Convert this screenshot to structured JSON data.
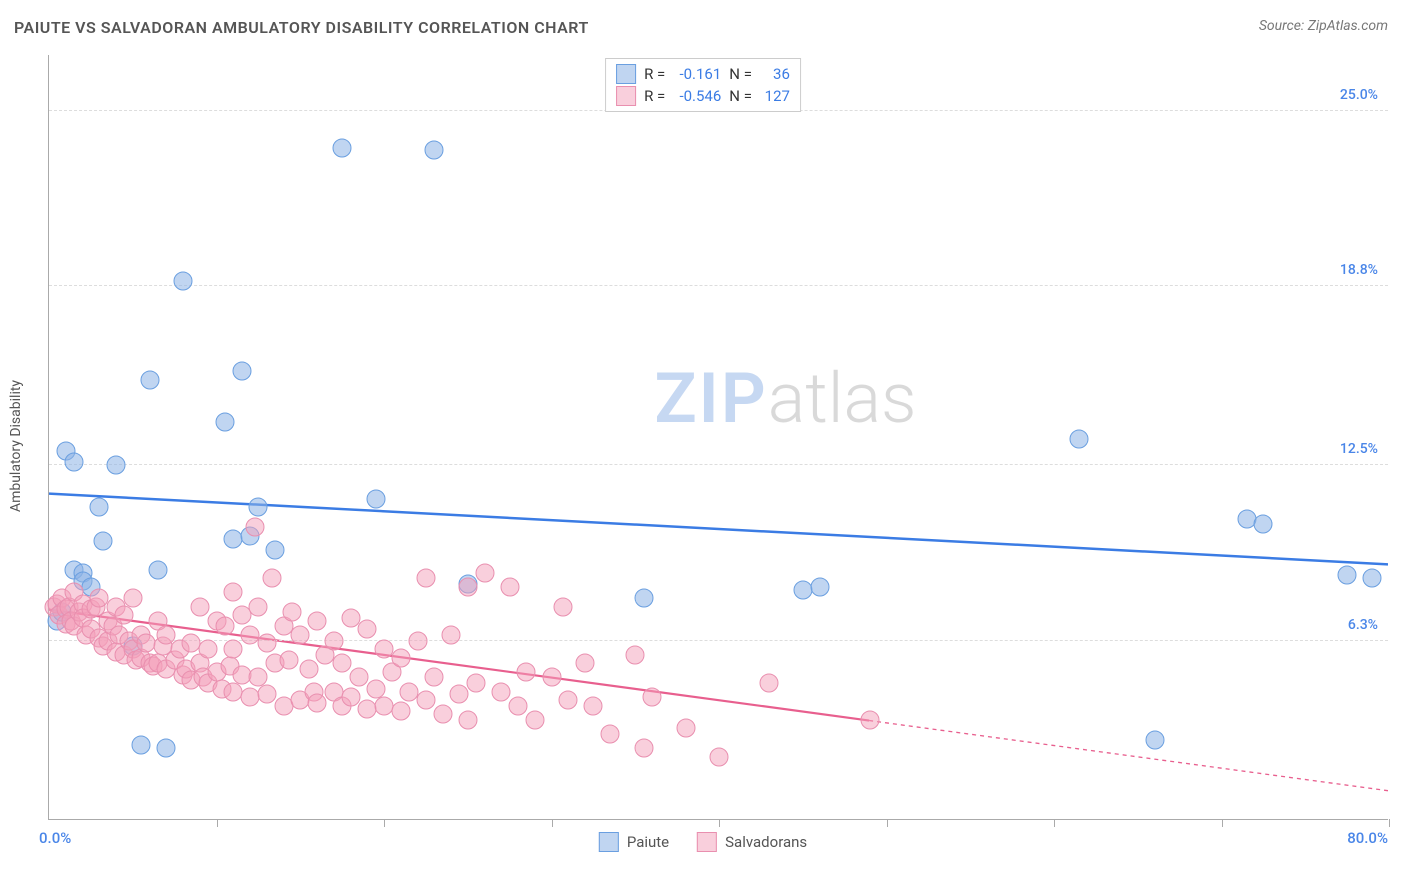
{
  "title": "PAIUTE VS SALVADORAN AMBULATORY DISABILITY CORRELATION CHART",
  "source": "Source: ZipAtlas.com",
  "ylabel": "Ambulatory Disability",
  "watermark": {
    "part1": "ZIP",
    "part2": "atlas"
  },
  "chart": {
    "type": "scatter",
    "xlim": [
      0,
      80
    ],
    "ylim": [
      0,
      27
    ],
    "xmin_label": "0.0%",
    "xmax_label": "80.0%",
    "background_color": "#ffffff",
    "grid_color": "#dddddd",
    "yticks": [
      {
        "v": 6.3,
        "label": "6.3%"
      },
      {
        "v": 12.5,
        "label": "12.5%"
      },
      {
        "v": 18.8,
        "label": "18.8%"
      },
      {
        "v": 25.0,
        "label": "25.0%"
      }
    ],
    "xticks": [
      10,
      20,
      30,
      40,
      50,
      60,
      70,
      80
    ],
    "marker_size": 19,
    "series": [
      {
        "name": "Paiute",
        "color_fill": "rgba(141,178,229,0.55)",
        "color_border": "#6a9fe0",
        "R": "-0.161",
        "N": "36",
        "trend": {
          "x1": 0,
          "y1": 11.5,
          "x2": 80,
          "y2": 9.0,
          "color": "#3b7ce4",
          "width": 2.5,
          "solid_until_x": 80
        },
        "points": [
          [
            0.5,
            7.0
          ],
          [
            0.8,
            7.3
          ],
          [
            1.0,
            13.0
          ],
          [
            1.5,
            12.6
          ],
          [
            1.5,
            8.8
          ],
          [
            2.0,
            8.7
          ],
          [
            2.0,
            8.4
          ],
          [
            2.5,
            8.2
          ],
          [
            3.0,
            11.0
          ],
          [
            3.2,
            9.8
          ],
          [
            4.0,
            12.5
          ],
          [
            5.0,
            6.1
          ],
          [
            5.5,
            2.6
          ],
          [
            6.0,
            15.5
          ],
          [
            6.5,
            8.8
          ],
          [
            7.0,
            2.5
          ],
          [
            8.0,
            19.0
          ],
          [
            10.5,
            14.0
          ],
          [
            11.0,
            9.9
          ],
          [
            11.5,
            15.8
          ],
          [
            12.0,
            10.0
          ],
          [
            12.5,
            11.0
          ],
          [
            13.5,
            9.5
          ],
          [
            17.5,
            23.7
          ],
          [
            19.5,
            11.3
          ],
          [
            23.0,
            23.6
          ],
          [
            25.0,
            8.3
          ],
          [
            35.5,
            7.8
          ],
          [
            45.0,
            8.1
          ],
          [
            46.0,
            8.2
          ],
          [
            61.5,
            13.4
          ],
          [
            66.0,
            2.8
          ],
          [
            71.5,
            10.6
          ],
          [
            72.5,
            10.4
          ],
          [
            77.5,
            8.6
          ],
          [
            79.0,
            8.5
          ]
        ]
      },
      {
        "name": "Salvadorans",
        "color_fill": "rgba(244,160,186,0.5)",
        "color_border": "#e98faf",
        "R": "-0.546",
        "N": "127",
        "trend": {
          "x1": 0,
          "y1": 7.4,
          "x2": 80,
          "y2": 1.0,
          "color": "#e85f8e",
          "width": 2.2,
          "solid_until_x": 49
        },
        "points": [
          [
            0.3,
            7.5
          ],
          [
            0.5,
            7.6
          ],
          [
            0.6,
            7.2
          ],
          [
            0.8,
            7.8
          ],
          [
            1.0,
            7.4
          ],
          [
            1.0,
            6.9
          ],
          [
            1.2,
            7.5
          ],
          [
            1.3,
            7.0
          ],
          [
            1.5,
            8.0
          ],
          [
            1.5,
            6.8
          ],
          [
            1.8,
            7.3
          ],
          [
            2.0,
            7.6
          ],
          [
            2.0,
            7.1
          ],
          [
            2.2,
            6.5
          ],
          [
            2.5,
            7.4
          ],
          [
            2.5,
            6.7
          ],
          [
            2.8,
            7.5
          ],
          [
            3.0,
            7.8
          ],
          [
            3.0,
            6.4
          ],
          [
            3.2,
            6.1
          ],
          [
            3.5,
            7.0
          ],
          [
            3.5,
            6.3
          ],
          [
            3.8,
            6.8
          ],
          [
            4.0,
            7.5
          ],
          [
            4.0,
            5.9
          ],
          [
            4.2,
            6.5
          ],
          [
            4.5,
            7.2
          ],
          [
            4.5,
            5.8
          ],
          [
            4.8,
            6.3
          ],
          [
            5.0,
            7.8
          ],
          [
            5.0,
            6.0
          ],
          [
            5.2,
            5.6
          ],
          [
            5.5,
            6.5
          ],
          [
            5.5,
            5.7
          ],
          [
            5.8,
            6.2
          ],
          [
            6.0,
            5.5
          ],
          [
            6.2,
            5.4
          ],
          [
            6.5,
            7.0
          ],
          [
            6.5,
            5.5
          ],
          [
            6.8,
            6.1
          ],
          [
            7.0,
            6.5
          ],
          [
            7.0,
            5.3
          ],
          [
            7.5,
            5.6
          ],
          [
            7.8,
            6.0
          ],
          [
            8.0,
            5.1
          ],
          [
            8.2,
            5.3
          ],
          [
            8.5,
            6.2
          ],
          [
            8.5,
            4.9
          ],
          [
            9.0,
            7.5
          ],
          [
            9.0,
            5.5
          ],
          [
            9.2,
            5.0
          ],
          [
            9.5,
            6.0
          ],
          [
            9.5,
            4.8
          ],
          [
            10.0,
            7.0
          ],
          [
            10.0,
            5.2
          ],
          [
            10.3,
            4.6
          ],
          [
            10.5,
            6.8
          ],
          [
            10.8,
            5.4
          ],
          [
            11.0,
            8.0
          ],
          [
            11.0,
            6.0
          ],
          [
            11.0,
            4.5
          ],
          [
            11.5,
            7.2
          ],
          [
            11.5,
            5.1
          ],
          [
            12.0,
            6.5
          ],
          [
            12.0,
            4.3
          ],
          [
            12.3,
            10.3
          ],
          [
            12.5,
            7.5
          ],
          [
            12.5,
            5.0
          ],
          [
            13.0,
            6.2
          ],
          [
            13.0,
            4.4
          ],
          [
            13.3,
            8.5
          ],
          [
            13.5,
            5.5
          ],
          [
            14.0,
            6.8
          ],
          [
            14.0,
            4.0
          ],
          [
            14.3,
            5.6
          ],
          [
            14.5,
            7.3
          ],
          [
            15.0,
            4.2
          ],
          [
            15.0,
            6.5
          ],
          [
            15.5,
            5.3
          ],
          [
            15.8,
            4.5
          ],
          [
            16.0,
            7.0
          ],
          [
            16.0,
            4.1
          ],
          [
            16.5,
            5.8
          ],
          [
            17.0,
            4.5
          ],
          [
            17.0,
            6.3
          ],
          [
            17.5,
            4.0
          ],
          [
            17.5,
            5.5
          ],
          [
            18.0,
            7.1
          ],
          [
            18.0,
            4.3
          ],
          [
            18.5,
            5.0
          ],
          [
            19.0,
            6.7
          ],
          [
            19.0,
            3.9
          ],
          [
            19.5,
            4.6
          ],
          [
            20.0,
            6.0
          ],
          [
            20.0,
            4.0
          ],
          [
            20.5,
            5.2
          ],
          [
            21.0,
            5.7
          ],
          [
            21.0,
            3.8
          ],
          [
            21.5,
            4.5
          ],
          [
            22.0,
            6.3
          ],
          [
            22.5,
            8.5
          ],
          [
            22.5,
            4.2
          ],
          [
            23.0,
            5.0
          ],
          [
            23.5,
            3.7
          ],
          [
            24.0,
            6.5
          ],
          [
            24.5,
            4.4
          ],
          [
            25.0,
            8.2
          ],
          [
            25.0,
            3.5
          ],
          [
            25.5,
            4.8
          ],
          [
            26.0,
            8.7
          ],
          [
            27.0,
            4.5
          ],
          [
            27.5,
            8.2
          ],
          [
            28.0,
            4.0
          ],
          [
            28.5,
            5.2
          ],
          [
            29.0,
            3.5
          ],
          [
            30.0,
            5.0
          ],
          [
            30.7,
            7.5
          ],
          [
            31.0,
            4.2
          ],
          [
            32.0,
            5.5
          ],
          [
            32.5,
            4.0
          ],
          [
            33.5,
            3.0
          ],
          [
            35.0,
            5.8
          ],
          [
            35.5,
            2.5
          ],
          [
            36.0,
            4.3
          ],
          [
            38.0,
            3.2
          ],
          [
            40.0,
            2.2
          ],
          [
            43.0,
            4.8
          ],
          [
            49.0,
            3.5
          ]
        ]
      }
    ]
  },
  "legend_bottom": [
    {
      "label": "Paiute",
      "fill": "rgba(141,178,229,0.55)",
      "border": "#6a9fe0"
    },
    {
      "label": "Salvadorans",
      "fill": "rgba(244,160,186,0.5)",
      "border": "#e98faf"
    }
  ]
}
